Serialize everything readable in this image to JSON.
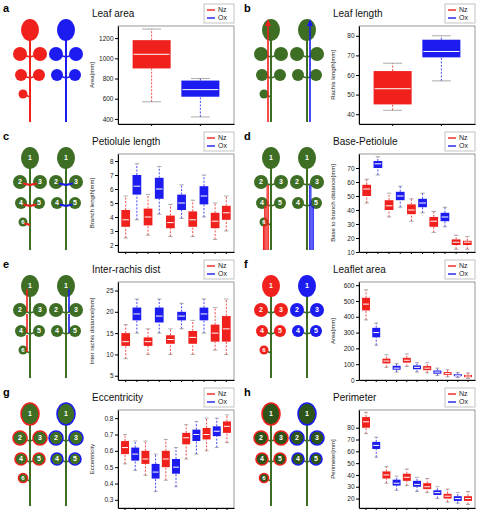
{
  "chart_data": [
    {
      "type": "box",
      "label": "a",
      "title": "Leaf area",
      "ylabel": "Area[mm]",
      "legend": "upper right",
      "categories": [
        null,
        null
      ],
      "ylim": [
        350,
        1320
      ],
      "yticks": [
        400,
        600,
        800,
        1000,
        1200
      ],
      "series": [
        {
          "name": "Nz",
          "color": "#f0201c",
          "boxes": [
            {
              "min": 570,
              "q1": 900,
              "median": 1040,
              "q3": 1180,
              "max": 1290
            },
            null
          ]
        },
        {
          "name": "Ox",
          "color": "#1c1cf0",
          "boxes": [
            null,
            {
              "min": 420,
              "q1": 620,
              "median": 690,
              "q3": 780,
              "max": 800
            }
          ]
        }
      ]
    },
    {
      "type": "box",
      "label": "b",
      "title": "Leaf length",
      "ylabel": "Rachis length[mm]",
      "legend": "upper right",
      "categories": [
        null,
        null
      ],
      "ylim": [
        35,
        85
      ],
      "yticks": [
        40,
        50,
        60,
        70,
        80
      ],
      "series": [
        {
          "name": "Nz",
          "color": "#f0201c",
          "boxes": [
            {
              "min": 42,
              "q1": 45,
              "median": 53,
              "q3": 62,
              "max": 66
            },
            null
          ]
        },
        {
          "name": "Ox",
          "color": "#1c1cf0",
          "boxes": [
            null,
            {
              "min": 57,
              "q1": 69,
              "median": 72,
              "q3": 78,
              "max": 80
            }
          ]
        }
      ]
    },
    {
      "type": "box",
      "label": "c",
      "title": "Petiolule length",
      "ylabel": "Branch length[mm]",
      "legend": "upper right",
      "leaflet_labels": [
        [
          "1",
          "2",
          "3",
          "4",
          "5",
          "6"
        ],
        [
          "1",
          "2",
          "3",
          "4",
          "5"
        ]
      ],
      "categories": [
        null,
        null,
        null,
        null,
        null,
        null,
        null,
        null,
        null,
        null
      ],
      "ylim": [
        1.5,
        8.5
      ],
      "yticks": [
        2,
        3,
        4,
        5,
        6,
        7,
        8
      ],
      "series": [
        {
          "name": "Nz",
          "color": "#f0201c",
          "boxes": [
            {
              "min": 2.5,
              "q1": 3.3,
              "median": 3.8,
              "q3": 4.5,
              "max": 5.5
            },
            null,
            {
              "min": 2.7,
              "q1": 3.4,
              "median": 4.0,
              "q3": 4.6,
              "max": 5.6
            },
            null,
            {
              "min": 2.6,
              "q1": 3.2,
              "median": 3.6,
              "q3": 4.1,
              "max": 4.9
            },
            null,
            {
              "min": 2.6,
              "q1": 3.3,
              "median": 3.8,
              "q3": 4.4,
              "max": 5.2
            },
            null,
            {
              "min": 2.4,
              "q1": 3.2,
              "median": 3.7,
              "q3": 4.3,
              "max": 5.0
            },
            {
              "min": 3.0,
              "q1": 3.8,
              "median": 4.3,
              "q3": 4.8,
              "max": 5.5
            }
          ]
        },
        {
          "name": "Ox",
          "color": "#1c1cf0",
          "boxes": [
            null,
            {
              "min": 3.8,
              "q1": 5.6,
              "median": 6.2,
              "q3": 7.0,
              "max": 7.8
            },
            null,
            {
              "min": 4.2,
              "q1": 5.3,
              "median": 6.0,
              "q3": 6.8,
              "max": 7.6
            },
            null,
            {
              "min": 3.9,
              "q1": 4.5,
              "median": 5.0,
              "q3": 5.6,
              "max": 6.3
            },
            null,
            {
              "min": 4.0,
              "q1": 4.9,
              "median": 5.5,
              "q3": 6.2,
              "max": 7.0
            },
            null,
            null
          ]
        }
      ]
    },
    {
      "type": "box",
      "label": "d",
      "title": "Base-Petiolule",
      "ylabel": "Base to branch distance[mm]",
      "legend": "upper right",
      "leaflet_labels": [
        [
          "1",
          "2",
          "3",
          "4",
          "5",
          "6"
        ],
        [
          "1",
          "2",
          "3",
          "4",
          "5"
        ]
      ],
      "categories": [
        null,
        null,
        null,
        null,
        null,
        null,
        null,
        null,
        null,
        null
      ],
      "ylim": [
        10,
        80
      ],
      "yticks": [
        10,
        20,
        30,
        40,
        50,
        60,
        70
      ],
      "series": [
        {
          "name": "Nz",
          "color": "#f0201c",
          "boxes": [
            {
              "min": 45,
              "q1": 50,
              "median": 55,
              "q3": 58,
              "max": 62
            },
            null,
            {
              "min": 35,
              "q1": 40,
              "median": 43,
              "q3": 47,
              "max": 52
            },
            null,
            {
              "min": 32,
              "q1": 37,
              "median": 40,
              "q3": 44,
              "max": 48
            },
            null,
            {
              "min": 24,
              "q1": 28,
              "median": 32,
              "q3": 35,
              "max": 39
            },
            null,
            {
              "min": 12,
              "q1": 15,
              "median": 17,
              "q3": 19,
              "max": 22
            },
            {
              "min": 12,
              "q1": 15,
              "median": 17,
              "q3": 18,
              "max": 21
            }
          ]
        },
        {
          "name": "Ox",
          "color": "#1c1cf0",
          "boxes": [
            null,
            {
              "min": 65,
              "q1": 70,
              "median": 73,
              "q3": 75,
              "max": 78
            },
            null,
            {
              "min": 42,
              "q1": 47,
              "median": 50,
              "q3": 53,
              "max": 57
            },
            null,
            {
              "min": 38,
              "q1": 42,
              "median": 45,
              "q3": 48,
              "max": 52
            },
            null,
            {
              "min": 28,
              "q1": 32,
              "median": 35,
              "q3": 38,
              "max": 42
            },
            null,
            null
          ]
        }
      ]
    },
    {
      "type": "box",
      "label": "e",
      "title": "Inter-rachis dist",
      "ylabel": "Inter rachis distance[mm]",
      "legend": "upper right",
      "leaflet_labels": [
        [
          "1",
          "2",
          "3",
          "4",
          "5",
          "6"
        ],
        [
          "1",
          "2",
          "3",
          "4",
          "5"
        ]
      ],
      "categories": [
        null,
        null,
        null,
        null,
        null,
        null,
        null,
        null,
        null,
        null
      ],
      "ylim": [
        4,
        27
      ],
      "yticks": [
        5,
        10,
        15,
        20,
        25
      ],
      "series": [
        {
          "name": "Nz",
          "color": "#f0201c",
          "boxes": [
            {
              "min": 9,
              "q1": 12,
              "median": 13,
              "q3": 15,
              "max": 17
            },
            null,
            {
              "min": 10,
              "q1": 12,
              "median": 13,
              "q3": 14,
              "max": 16
            },
            null,
            {
              "min": 10,
              "q1": 12.5,
              "median": 13.5,
              "q3": 14.5,
              "max": 16
            },
            null,
            {
              "min": 10,
              "q1": 12.5,
              "median": 14,
              "q3": 15.5,
              "max": 18
            },
            null,
            {
              "min": 11,
              "q1": 13,
              "median": 15,
              "q3": 17,
              "max": 21
            },
            {
              "min": 10,
              "q1": 13,
              "median": 16,
              "q3": 19,
              "max": 23
            }
          ]
        },
        {
          "name": "Ox",
          "color": "#1c1cf0",
          "boxes": [
            null,
            {
              "min": 15,
              "q1": 18,
              "median": 19.5,
              "q3": 21,
              "max": 23
            },
            null,
            {
              "min": 15,
              "q1": 17.5,
              "median": 19,
              "q3": 21,
              "max": 23
            },
            null,
            {
              "min": 16,
              "q1": 18,
              "median": 19,
              "q3": 20,
              "max": 22
            },
            null,
            {
              "min": 15,
              "q1": 18,
              "median": 19.5,
              "q3": 21,
              "max": 23
            },
            null,
            null
          ]
        }
      ]
    },
    {
      "type": "box",
      "label": "f",
      "title": "Leaflet area",
      "ylabel": "Area[mm]",
      "legend": "upper right",
      "leaflet_labels": [
        [
          "1",
          "2",
          "3",
          "4",
          "5",
          "6"
        ],
        [
          "1",
          "2",
          "3",
          "4",
          "5"
        ]
      ],
      "categories": [
        null,
        null,
        null,
        null,
        null,
        null,
        null,
        null,
        null,
        null,
        null
      ],
      "ylim": [
        0,
        620
      ],
      "yticks": [
        0,
        100,
        200,
        300,
        400,
        500,
        600
      ],
      "series": [
        {
          "name": "Nz",
          "color": "#f0201c",
          "boxes": [
            {
              "min": 380,
              "q1": 440,
              "median": 480,
              "q3": 520,
              "max": 570
            },
            null,
            {
              "min": 80,
              "q1": 105,
              "median": 120,
              "q3": 135,
              "max": 160
            },
            null,
            {
              "min": 85,
              "q1": 110,
              "median": 125,
              "q3": 140,
              "max": 165
            },
            null,
            {
              "min": 45,
              "q1": 62,
              "median": 75,
              "q3": 88,
              "max": 110
            },
            null,
            {
              "min": 20,
              "q1": 32,
              "median": 40,
              "q3": 50,
              "max": 65
            },
            null,
            {
              "min": 10,
              "q1": 18,
              "median": 25,
              "q3": 32,
              "max": 45
            }
          ]
        },
        {
          "name": "Ox",
          "color": "#1c1cf0",
          "boxes": [
            null,
            {
              "min": 220,
              "q1": 270,
              "median": 300,
              "q3": 330,
              "max": 360
            },
            null,
            {
              "min": 50,
              "q1": 65,
              "median": 75,
              "q3": 90,
              "max": 105
            },
            null,
            {
              "min": 50,
              "q1": 68,
              "median": 80,
              "q3": 92,
              "max": 110
            },
            null,
            {
              "min": 28,
              "q1": 40,
              "median": 50,
              "q3": 60,
              "max": 75
            },
            null,
            {
              "min": 15,
              "q1": 24,
              "median": 30,
              "q3": 37,
              "max": 48
            },
            null
          ]
        }
      ]
    },
    {
      "type": "box",
      "label": "g",
      "title": "Eccentricity",
      "ylabel": "Eccentricity",
      "legend": "upper right",
      "leaflet_labels": [
        [
          "1",
          "2",
          "3",
          "4",
          "5",
          "6"
        ],
        [
          "1",
          "2",
          "3",
          "4",
          "5"
        ]
      ],
      "categories": [
        null,
        null,
        null,
        null,
        null,
        null,
        null,
        null,
        null,
        null,
        null
      ],
      "ylim": [
        0.25,
        0.85
      ],
      "yticks": [
        0.3,
        0.4,
        0.5,
        0.6,
        0.7,
        0.8
      ],
      "series": [
        {
          "name": "Nz",
          "color": "#f0201c",
          "boxes": [
            {
              "min": 0.52,
              "q1": 0.58,
              "median": 0.62,
              "q3": 0.66,
              "max": 0.7
            },
            null,
            {
              "min": 0.45,
              "q1": 0.52,
              "median": 0.55,
              "q3": 0.6,
              "max": 0.66
            },
            null,
            {
              "min": 0.42,
              "q1": 0.5,
              "median": 0.55,
              "q3": 0.6,
              "max": 0.67
            },
            null,
            {
              "min": 0.55,
              "q1": 0.64,
              "median": 0.68,
              "q3": 0.71,
              "max": 0.76
            },
            null,
            {
              "min": 0.6,
              "q1": 0.67,
              "median": 0.7,
              "q3": 0.74,
              "max": 0.8
            },
            null,
            {
              "min": 0.65,
              "q1": 0.71,
              "median": 0.75,
              "q3": 0.78,
              "max": 0.82
            }
          ]
        },
        {
          "name": "Ox",
          "color": "#1c1cf0",
          "boxes": [
            null,
            {
              "min": 0.48,
              "q1": 0.54,
              "median": 0.58,
              "q3": 0.62,
              "max": 0.66
            },
            null,
            {
              "min": 0.35,
              "q1": 0.43,
              "median": 0.47,
              "q3": 0.52,
              "max": 0.58
            },
            null,
            {
              "min": 0.38,
              "q1": 0.46,
              "median": 0.5,
              "q3": 0.55,
              "max": 0.62
            },
            null,
            {
              "min": 0.58,
              "q1": 0.66,
              "median": 0.7,
              "q3": 0.73,
              "max": 0.78
            },
            null,
            {
              "min": 0.62,
              "q1": 0.69,
              "median": 0.72,
              "q3": 0.75,
              "max": 0.8
            },
            null
          ]
        }
      ]
    },
    {
      "type": "box",
      "label": "h",
      "title": "Perimeter",
      "ylabel": "Perimeter[mm]",
      "legend": "upper right",
      "leaflet_labels": [
        [
          "1",
          "2",
          "3",
          "4",
          "5",
          "6"
        ],
        [
          "1",
          "2",
          "3",
          "4",
          "5"
        ]
      ],
      "categories": [
        null,
        null,
        null,
        null,
        null,
        null,
        null,
        null,
        null,
        null,
        null
      ],
      "ylim": [
        12,
        95
      ],
      "yticks": [
        20,
        30,
        40,
        50,
        60,
        70,
        80
      ],
      "series": [
        {
          "name": "Nz",
          "color": "#f0201c",
          "boxes": [
            {
              "min": 75,
              "q1": 80,
              "median": 85,
              "q3": 89,
              "max": 93
            },
            null,
            {
              "min": 33,
              "q1": 37,
              "median": 40,
              "q3": 43,
              "max": 47
            },
            null,
            {
              "min": 31,
              "q1": 35,
              "median": 38,
              "q3": 41,
              "max": 45
            },
            null,
            {
              "min": 25,
              "q1": 28,
              "median": 30,
              "q3": 33,
              "max": 37
            },
            null,
            {
              "min": 17,
              "q1": 20,
              "median": 22,
              "q3": 24,
              "max": 28
            },
            null,
            {
              "min": 15,
              "q1": 18,
              "median": 20,
              "q3": 22,
              "max": 26
            }
          ]
        },
        {
          "name": "Ox",
          "color": "#1c1cf0",
          "boxes": [
            null,
            {
              "min": 55,
              "q1": 62,
              "median": 65,
              "q3": 68,
              "max": 72
            },
            null,
            {
              "min": 27,
              "q1": 31,
              "median": 33,
              "q3": 36,
              "max": 39
            },
            null,
            {
              "min": 26,
              "q1": 30,
              "median": 32,
              "q3": 35,
              "max": 38
            },
            null,
            {
              "min": 20,
              "q1": 23,
              "median": 25,
              "q3": 27,
              "max": 30
            },
            null,
            {
              "min": 16,
              "q1": 18,
              "median": 20,
              "q3": 22,
              "max": 25
            },
            null
          ]
        }
      ]
    }
  ]
}
